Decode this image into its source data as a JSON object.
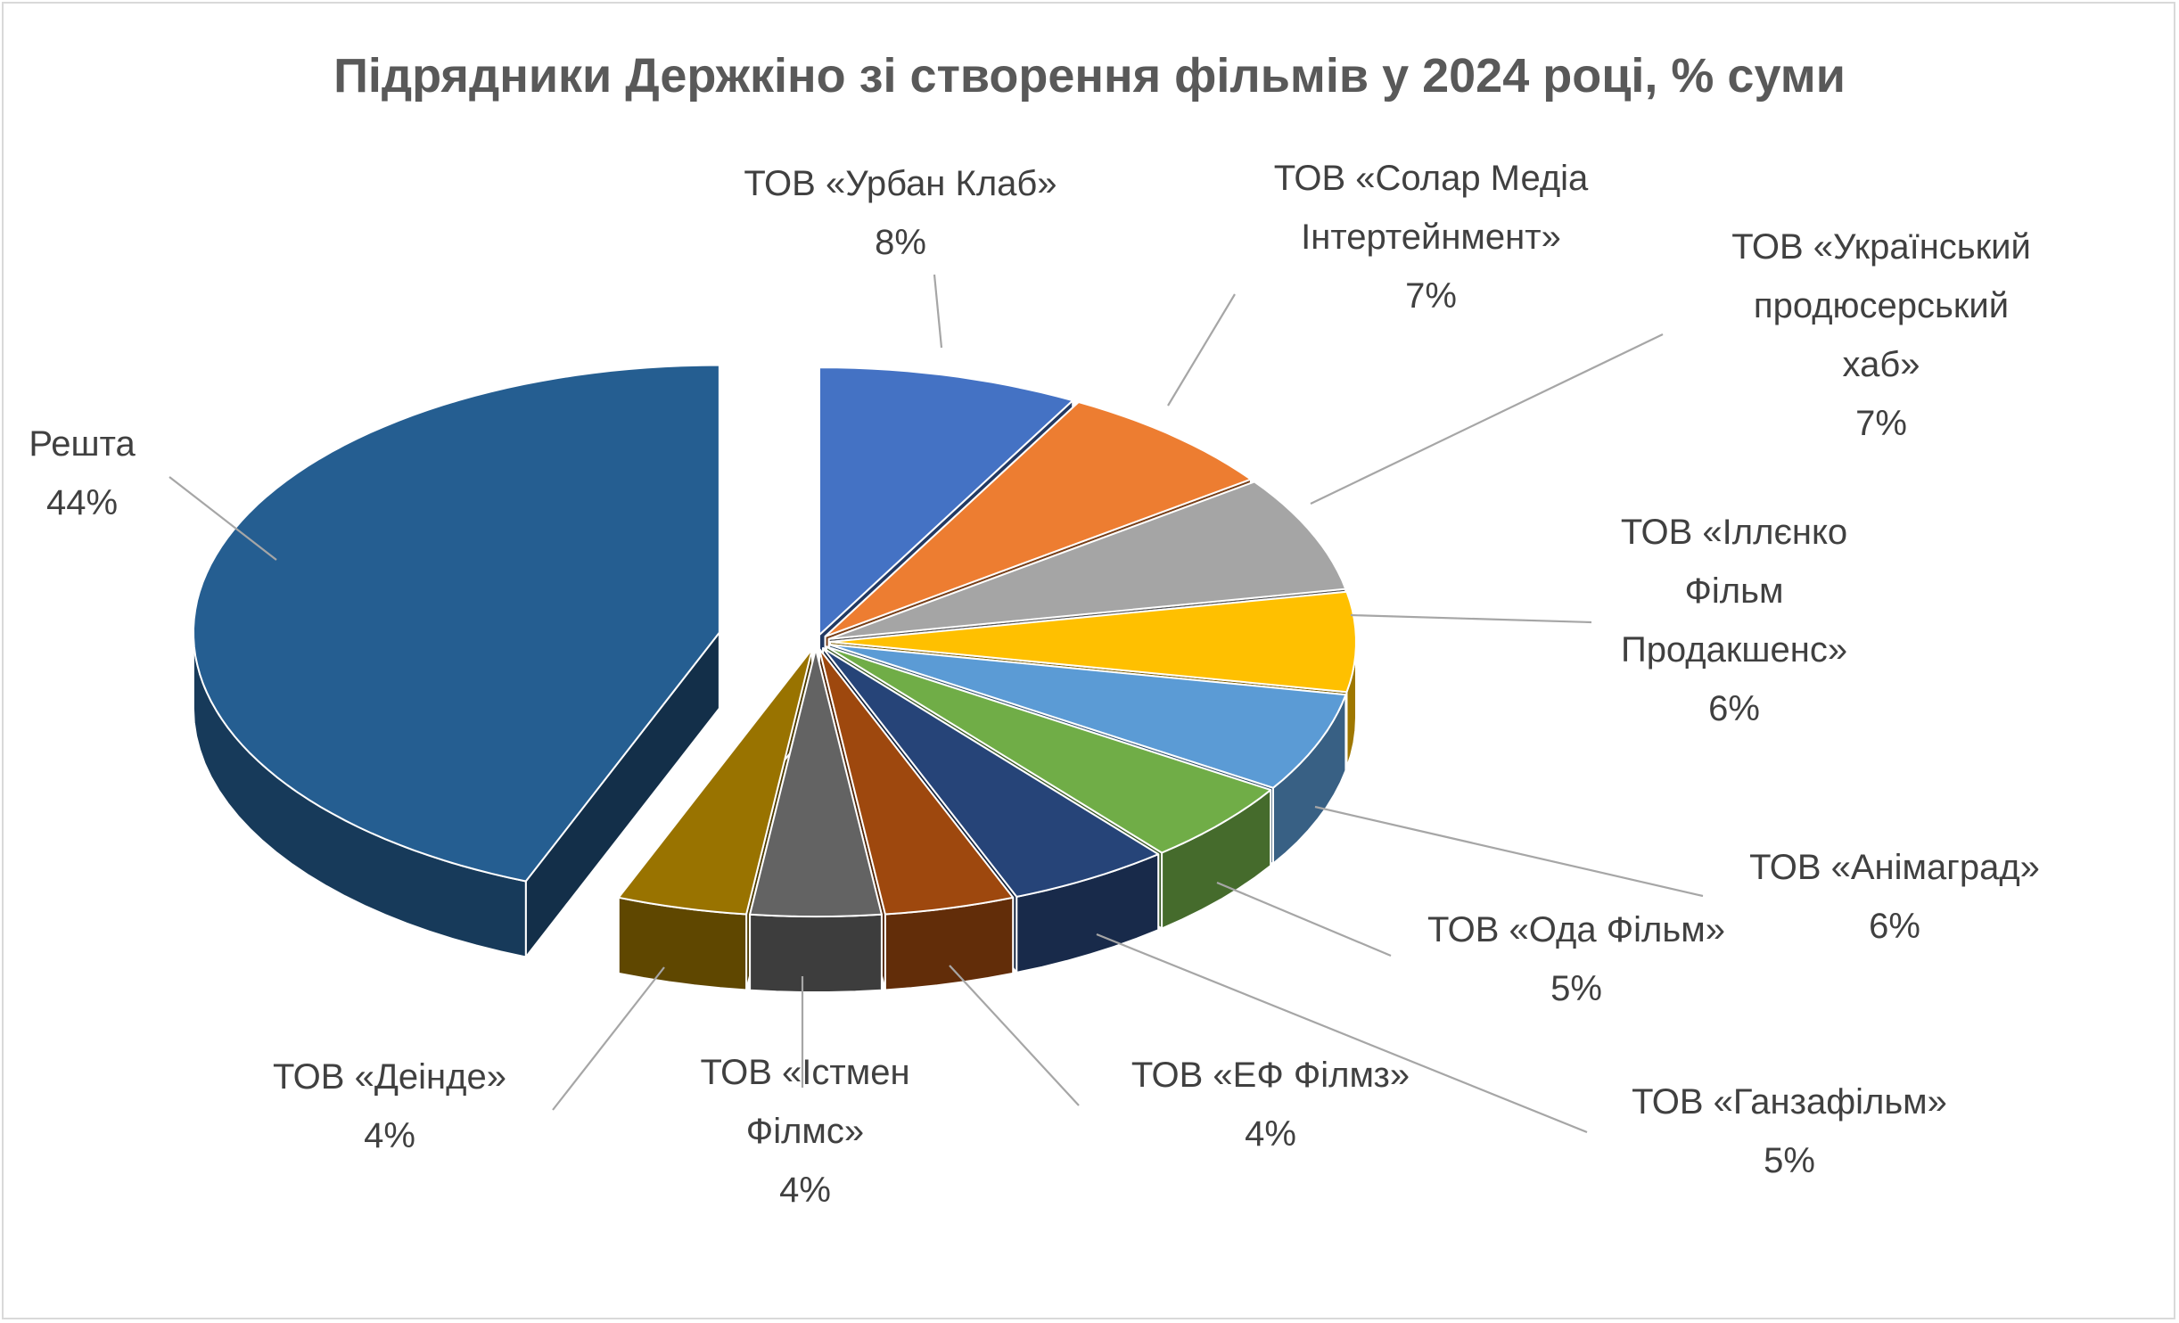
{
  "chart_data": {
    "type": "pie",
    "style": "3d-exploded",
    "title": "Підрядники Держкіно зі створення фільмів у 2024 році, % суми",
    "slices": [
      {
        "name_lines": [
          "ТОВ «Урбан Клаб»"
        ],
        "value": 8,
        "value_label": "8%",
        "color": "#4472C4",
        "icon": "slice"
      },
      {
        "name_lines": [
          "ТОВ «Солар Медіа",
          "Інтертейнмент»"
        ],
        "value": 7,
        "value_label": "7%",
        "color": "#ED7D31",
        "icon": "slice"
      },
      {
        "name_lines": [
          "ТОВ «Український",
          "продюсерський",
          "хаб»"
        ],
        "value": 7,
        "value_label": "7%",
        "color": "#A5A5A5",
        "icon": "slice"
      },
      {
        "name_lines": [
          "ТОВ «Іллєнко",
          "Фільм",
          "Продакшенс»"
        ],
        "value": 6,
        "value_label": "6%",
        "color": "#FFC000",
        "icon": "slice"
      },
      {
        "name_lines": [
          "ТОВ «Анімаград»"
        ],
        "value": 6,
        "value_label": "6%",
        "color": "#5B9BD5",
        "icon": "slice"
      },
      {
        "name_lines": [
          "ТОВ «Ода Фільм»"
        ],
        "value": 5,
        "value_label": "5%",
        "color": "#70AD47",
        "icon": "slice"
      },
      {
        "name_lines": [
          "ТОВ «Ганзафільм»"
        ],
        "value": 5,
        "value_label": "5%",
        "color": "#264478",
        "icon": "slice"
      },
      {
        "name_lines": [
          "ТОВ «ЕФ Філмз»"
        ],
        "value": 4,
        "value_label": "4%",
        "color": "#9E480E",
        "icon": "slice"
      },
      {
        "name_lines": [
          "ТОВ «Істмен",
          "Філмс»"
        ],
        "value": 4,
        "value_label": "4%",
        "color": "#636363",
        "icon": "slice"
      },
      {
        "name_lines": [
          "ТОВ «Деінде»"
        ],
        "value": 4,
        "value_label": "4%",
        "color": "#997300",
        "icon": "slice"
      },
      {
        "name_lines": [
          "Решта"
        ],
        "value": 44,
        "value_label": "44%",
        "color": "#255E91",
        "icon": "slice"
      }
    ],
    "legend": "none",
    "data_labels": "outside-with-leader-lines"
  }
}
